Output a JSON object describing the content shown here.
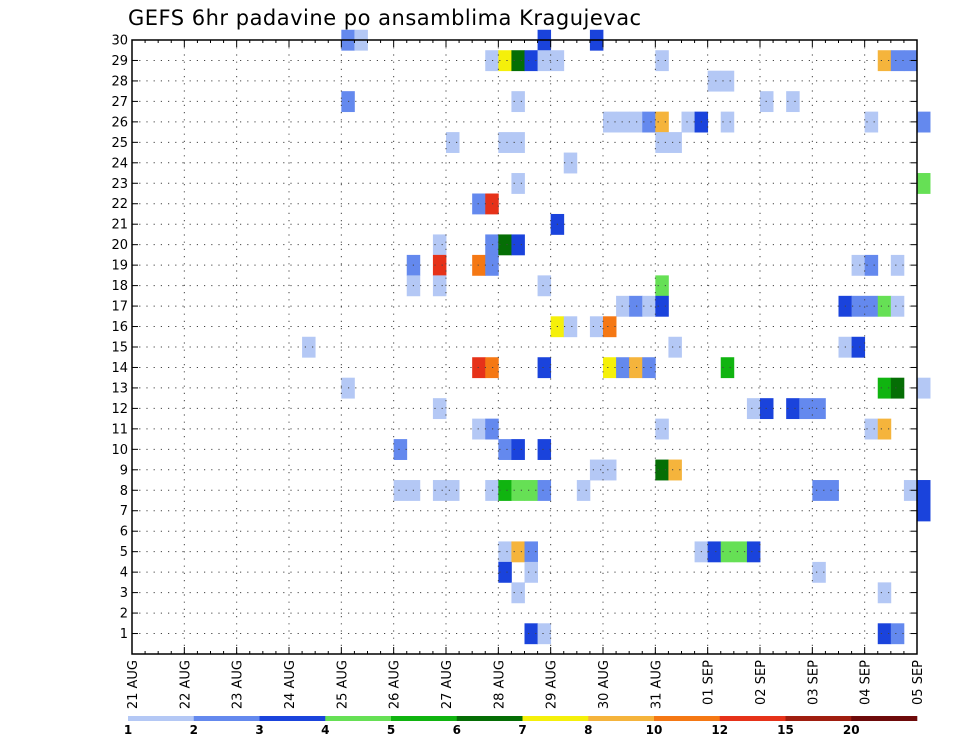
{
  "chart_data": {
    "type": "heatmap",
    "title": "GEFS 6hr padavine po ansamblima Kragujevac",
    "xlabel": "",
    "ylabel": "",
    "x_tick_labels": [
      "21 AUG",
      "22 AUG",
      "23 AUG",
      "24 AUG",
      "25 AUG",
      "26 AUG",
      "27 AUG",
      "28 AUG",
      "29 AUG",
      "30 AUG",
      "31 AUG",
      "01 SEP",
      "02 SEP",
      "03 SEP",
      "04 SEP",
      "05 SEP"
    ],
    "y_tick_labels": [
      "1",
      "2",
      "3",
      "4",
      "5",
      "6",
      "7",
      "8",
      "9",
      "10",
      "11",
      "12",
      "13",
      "14",
      "15",
      "16",
      "17",
      "18",
      "19",
      "20",
      "21",
      "22",
      "23",
      "24",
      "25",
      "26",
      "27",
      "28",
      "29",
      "30"
    ],
    "x_step_hours": 6,
    "y_range": [
      0,
      30
    ],
    "grid": true,
    "colorbar": {
      "labels": [
        "1",
        "2",
        "3",
        "4",
        "5",
        "6",
        "7",
        "8",
        "10",
        "12",
        "15",
        "20"
      ],
      "colors": [
        "#b4c8f5",
        "#6489ee",
        "#1a43dc",
        "#66e055",
        "#10b410",
        "#056e05",
        "#f5f00a",
        "#f5b43c",
        "#f57814",
        "#e63219",
        "#a01e10",
        "#6e0a0a"
      ]
    },
    "cells": [
      {
        "m": 30,
        "t": [
          [
            16,
            1
          ],
          [
            17,
            0
          ],
          [
            31,
            2
          ],
          [
            35,
            2
          ]
        ]
      },
      {
        "m": 29,
        "t": [
          [
            27,
            0
          ],
          [
            28,
            6
          ],
          [
            29,
            5
          ],
          [
            30,
            2
          ],
          [
            31,
            0
          ],
          [
            32,
            0
          ],
          [
            40,
            0
          ],
          [
            57,
            7
          ],
          [
            58,
            1
          ],
          [
            59,
            1
          ]
        ]
      },
      {
        "m": 28,
        "t": [
          [
            44,
            0
          ],
          [
            45,
            0
          ]
        ]
      },
      {
        "m": 27,
        "t": [
          [
            16,
            1
          ],
          [
            29,
            0
          ],
          [
            48,
            0
          ],
          [
            50,
            0
          ]
        ]
      },
      {
        "m": 26,
        "t": [
          [
            36,
            0
          ],
          [
            37,
            0
          ],
          [
            38,
            0
          ],
          [
            39,
            1
          ],
          [
            40,
            7
          ],
          [
            42,
            0
          ],
          [
            43,
            2
          ],
          [
            45,
            0
          ],
          [
            56,
            0
          ],
          [
            60,
            1
          ]
        ]
      },
      {
        "m": 25,
        "t": [
          [
            24,
            0
          ],
          [
            28,
            0
          ],
          [
            29,
            0
          ],
          [
            40,
            0
          ],
          [
            41,
            0
          ]
        ]
      },
      {
        "m": 24,
        "t": [
          [
            33,
            0
          ]
        ]
      },
      {
        "m": 23,
        "t": [
          [
            29,
            0
          ],
          [
            60,
            3
          ]
        ]
      },
      {
        "m": 22,
        "t": [
          [
            26,
            1
          ],
          [
            27,
            9
          ]
        ]
      },
      {
        "m": 21,
        "t": [
          [
            32,
            2
          ]
        ]
      },
      {
        "m": 20,
        "t": [
          [
            23,
            0
          ],
          [
            27,
            1
          ],
          [
            28,
            5
          ],
          [
            29,
            2
          ]
        ]
      },
      {
        "m": 19,
        "t": [
          [
            21,
            1
          ],
          [
            23,
            9
          ],
          [
            26,
            8
          ],
          [
            27,
            1
          ],
          [
            55,
            0
          ],
          [
            56,
            1
          ],
          [
            58,
            0
          ]
        ]
      },
      {
        "m": 18,
        "t": [
          [
            21,
            0
          ],
          [
            23,
            0
          ],
          [
            31,
            0
          ],
          [
            40,
            3
          ]
        ]
      },
      {
        "m": 17,
        "t": [
          [
            37,
            0
          ],
          [
            38,
            1
          ],
          [
            39,
            0
          ],
          [
            40,
            2
          ],
          [
            54,
            2
          ],
          [
            55,
            1
          ],
          [
            56,
            1
          ],
          [
            57,
            3
          ],
          [
            58,
            0
          ]
        ]
      },
      {
        "m": 16,
        "t": [
          [
            32,
            6
          ],
          [
            33,
            0
          ],
          [
            35,
            0
          ],
          [
            36,
            8
          ]
        ]
      },
      {
        "m": 15,
        "t": [
          [
            13,
            0
          ],
          [
            41,
            0
          ],
          [
            54,
            0
          ],
          [
            55,
            2
          ]
        ]
      },
      {
        "m": 14,
        "t": [
          [
            26,
            9
          ],
          [
            27,
            8
          ],
          [
            31,
            2
          ],
          [
            36,
            6
          ],
          [
            37,
            1
          ],
          [
            38,
            7
          ],
          [
            39,
            1
          ],
          [
            45,
            4
          ]
        ]
      },
      {
        "m": 13,
        "t": [
          [
            16,
            0
          ],
          [
            57,
            4
          ],
          [
            58,
            5
          ],
          [
            60,
            0
          ]
        ]
      },
      {
        "m": 12,
        "t": [
          [
            23,
            0
          ],
          [
            47,
            0
          ],
          [
            48,
            2
          ],
          [
            50,
            2
          ],
          [
            51,
            1
          ],
          [
            52,
            1
          ]
        ]
      },
      {
        "m": 11,
        "t": [
          [
            26,
            0
          ],
          [
            27,
            1
          ],
          [
            40,
            0
          ],
          [
            56,
            0
          ],
          [
            57,
            7
          ]
        ]
      },
      {
        "m": 10,
        "t": [
          [
            20,
            1
          ],
          [
            28,
            1
          ],
          [
            29,
            2
          ],
          [
            31,
            2
          ]
        ]
      },
      {
        "m": 9,
        "t": [
          [
            35,
            0
          ],
          [
            36,
            0
          ],
          [
            40,
            5
          ],
          [
            41,
            7
          ]
        ]
      },
      {
        "m": 8,
        "t": [
          [
            20,
            0
          ],
          [
            21,
            0
          ],
          [
            23,
            0
          ],
          [
            24,
            0
          ],
          [
            27,
            0
          ],
          [
            28,
            4
          ],
          [
            29,
            3
          ],
          [
            30,
            3
          ],
          [
            31,
            1
          ],
          [
            34,
            0
          ],
          [
            52,
            1
          ],
          [
            53,
            1
          ],
          [
            59,
            0
          ],
          [
            60,
            2
          ]
        ]
      },
      {
        "m": 7,
        "t": [
          [
            60,
            2
          ]
        ]
      },
      {
        "m": 5,
        "t": [
          [
            28,
            0
          ],
          [
            29,
            7
          ],
          [
            30,
            1
          ],
          [
            43,
            0
          ],
          [
            44,
            2
          ],
          [
            45,
            3
          ],
          [
            46,
            3
          ],
          [
            47,
            2
          ]
        ]
      },
      {
        "m": 4,
        "t": [
          [
            28,
            2
          ],
          [
            30,
            0
          ],
          [
            52,
            0
          ]
        ]
      },
      {
        "m": 3,
        "t": [
          [
            29,
            0
          ],
          [
            57,
            0
          ]
        ]
      },
      {
        "m": 1,
        "t": [
          [
            30,
            2
          ],
          [
            31,
            0
          ],
          [
            57,
            2
          ],
          [
            58,
            1
          ]
        ]
      }
    ]
  }
}
